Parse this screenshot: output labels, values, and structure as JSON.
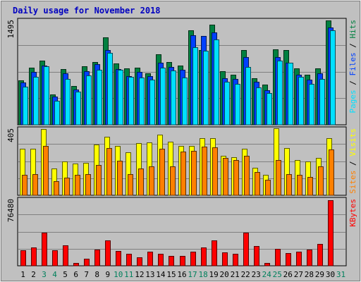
{
  "title": "Daily usage for November 2018",
  "colors": {
    "background": "#c0c0c0",
    "title": "#0000c0",
    "hits": "#008040",
    "files": "#0040ff",
    "pages": "#00e0ff",
    "visits": "#ffff00",
    "sites": "#ff8000",
    "kbytes": "#ff0000",
    "weekend_label": "#00805c",
    "weekday_label": "#000000"
  },
  "chart_data": {
    "type": "bar",
    "categories": [
      "1",
      "2",
      "3",
      "4",
      "5",
      "6",
      "7",
      "8",
      "9",
      "10",
      "11",
      "12",
      "13",
      "14",
      "15",
      "16",
      "17",
      "18",
      "19",
      "20",
      "21",
      "22",
      "23",
      "24",
      "25",
      "26",
      "27",
      "28",
      "29",
      "30",
      "31"
    ],
    "weekend_days": [
      "3",
      "4",
      "10",
      "11",
      "17",
      "18",
      "24",
      "25",
      "31"
    ],
    "panels": [
      {
        "id": "hits-files-pages",
        "scale_label": "1495",
        "ymax": 1495,
        "legend": [
          "Pages",
          "Files",
          "Hits"
        ],
        "series": [
          {
            "name": "Hits",
            "values": [
              630,
              815,
              910,
              430,
              790,
              555,
              830,
              890,
              1245,
              870,
              800,
              815,
              735,
              1000,
              890,
              845,
              1345,
              1060,
              1425,
              760,
              710,
              1060,
              665,
              575,
              1075,
              1060,
              800,
              715,
              805,
              1485,
              0
            ]
          },
          {
            "name": "Files",
            "values": [
              605,
              755,
              840,
              405,
              730,
              500,
              760,
              865,
              1060,
              790,
              695,
              750,
              690,
              880,
              820,
              780,
              1270,
              1260,
              1310,
              660,
              650,
              960,
              615,
              490,
              965,
              880,
              715,
              640,
              735,
              1385,
              0
            ]
          },
          {
            "name": "Pages",
            "values": [
              545,
              680,
              835,
              345,
              655,
              475,
              705,
              780,
              1020,
              785,
              680,
              670,
              645,
              810,
              775,
              670,
              1100,
              1050,
              1210,
              615,
              580,
              825,
              530,
              455,
              910,
              880,
              680,
              580,
              655,
              1345,
              0
            ]
          }
        ]
      },
      {
        "id": "visits-sites",
        "scale_label": "405",
        "ymax": 405,
        "legend": [
          "Sites",
          "Visits"
        ],
        "series": [
          {
            "name": "Visits",
            "values": [
              280,
              280,
              400,
              160,
              205,
              190,
              195,
              305,
              355,
              300,
              260,
              315,
              320,
              365,
              325,
              300,
              300,
              345,
              345,
              240,
              230,
              280,
              165,
              125,
              405,
              285,
              215,
              205,
              225,
              345,
              0
            ]
          },
          {
            "name": "Sites",
            "values": [
              125,
              130,
              300,
              85,
              105,
              125,
              130,
              185,
              285,
              210,
              130,
              160,
              175,
              280,
              175,
              265,
              270,
              295,
              290,
              225,
              215,
              240,
              140,
              95,
              215,
              130,
              125,
              110,
              175,
              275,
              0
            ]
          }
        ]
      },
      {
        "id": "kbytes",
        "scale_label": "76480",
        "ymax": 76480,
        "legend": [
          "KBytes"
        ],
        "series": [
          {
            "name": "KBytes",
            "values": [
              17700,
              20800,
              38100,
              18100,
              23400,
              3300,
              8100,
              18200,
              28800,
              16700,
              13600,
              9700,
              16200,
              13900,
              11300,
              11300,
              16100,
              21200,
              28900,
              15300,
              13800,
              37900,
              22800,
              3400,
              19500,
              14700,
              16400,
              18600,
              24600,
              75100,
              0
            ]
          }
        ]
      }
    ]
  }
}
